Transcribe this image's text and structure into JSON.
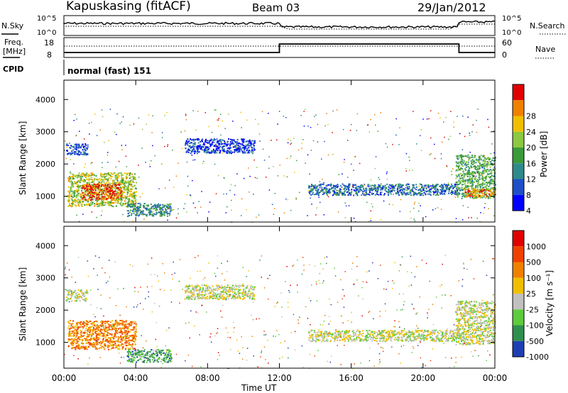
{
  "header": {
    "station": "Kapuskasing (fitACF)",
    "beam": "Beam 03",
    "date": "29/Jan/2012"
  },
  "top_panels": {
    "nsky_label": "N.Sky",
    "nsky_ticks": [
      "10^5",
      "10^0"
    ],
    "nsearch_label": "N.Search",
    "nsearch_ticks": [
      "10^5",
      "10^0"
    ],
    "freq_label_line1": "Freq.",
    "freq_label_line2": "[MHz]",
    "freq_ticks": [
      "18",
      "8"
    ],
    "nave_label": "Nave",
    "nave_ticks": [
      "60",
      "0"
    ],
    "cpid_label": "CPID",
    "cpid_value": "normal (fast) 151"
  },
  "chart_data": [
    {
      "type": "heatmap",
      "name": "power",
      "ylabel": "Slant Range [km]",
      "yticks": [
        "4000",
        "3000",
        "2000",
        "1000"
      ],
      "ylim": [
        200,
        4600
      ],
      "colorbar_label": "Power [dB]",
      "colorbar_ticks": [
        "28",
        "24",
        "20",
        "16",
        "12",
        "8",
        "4"
      ],
      "colorscale": [
        "#0000ff",
        "#1e4fc8",
        "#2e8a8a",
        "#3a9a3a",
        "#8cc840",
        "#f0c000",
        "#f08000",
        "#e00000"
      ],
      "regions": [
        {
          "t": [
            0.2,
            4.0
          ],
          "r": [
            700,
            1750
          ],
          "level": 0.6
        },
        {
          "t": [
            1.0,
            3.2
          ],
          "r": [
            900,
            1400
          ],
          "level": 0.9
        },
        {
          "t": [
            0.1,
            1.3
          ],
          "r": [
            2300,
            2650
          ],
          "level": 0.2
        },
        {
          "t": [
            6.7,
            10.6
          ],
          "r": [
            2350,
            2800
          ],
          "level": 0.15
        },
        {
          "t": [
            13.6,
            22.0
          ],
          "r": [
            1050,
            1400
          ],
          "level": 0.25
        },
        {
          "t": [
            21.8,
            24.0
          ],
          "r": [
            950,
            2300
          ],
          "level": 0.45
        },
        {
          "t": [
            22.3,
            24.0
          ],
          "r": [
            1000,
            1250
          ],
          "level": 0.8
        },
        {
          "t": [
            3.5,
            6.0
          ],
          "r": [
            400,
            800
          ],
          "level": 0.35
        }
      ]
    },
    {
      "type": "heatmap",
      "name": "velocity",
      "ylabel": "Slant Range [km]",
      "yticks": [
        "4000",
        "3000",
        "2000",
        "1000"
      ],
      "ylim": [
        200,
        4600
      ],
      "colorbar_label": "Velocity [m s⁻¹]",
      "colorbar_ticks": [
        "1000",
        "500",
        "100",
        "25",
        "-25",
        "-100",
        "-500",
        "-1000"
      ],
      "colorscale": [
        "#1e3fb4",
        "#2f8f4f",
        "#5ccc3c",
        "#c0c0c0",
        "#f0c000",
        "#f08000",
        "#f04000",
        "#e00000"
      ],
      "regions": [
        {
          "t": [
            0.2,
            4.0
          ],
          "r": [
            800,
            1700
          ],
          "level": 0.7
        },
        {
          "t": [
            0.1,
            1.3
          ],
          "r": [
            2300,
            2650
          ],
          "level": 0.45
        },
        {
          "t": [
            6.7,
            10.6
          ],
          "r": [
            2350,
            2800
          ],
          "level": 0.45
        },
        {
          "t": [
            13.6,
            22.0
          ],
          "r": [
            1050,
            1400
          ],
          "level": 0.45
        },
        {
          "t": [
            21.8,
            24.0
          ],
          "r": [
            950,
            2300
          ],
          "level": 0.45
        },
        {
          "t": [
            3.5,
            6.0
          ],
          "r": [
            400,
            800
          ],
          "level": 0.25
        }
      ]
    }
  ],
  "x_axis": {
    "ticks": [
      "00:00",
      "04:00",
      "08:00",
      "12:00",
      "16:00",
      "20:00",
      "00:00"
    ],
    "label": "Time UT",
    "range_hours": [
      0,
      24
    ]
  }
}
